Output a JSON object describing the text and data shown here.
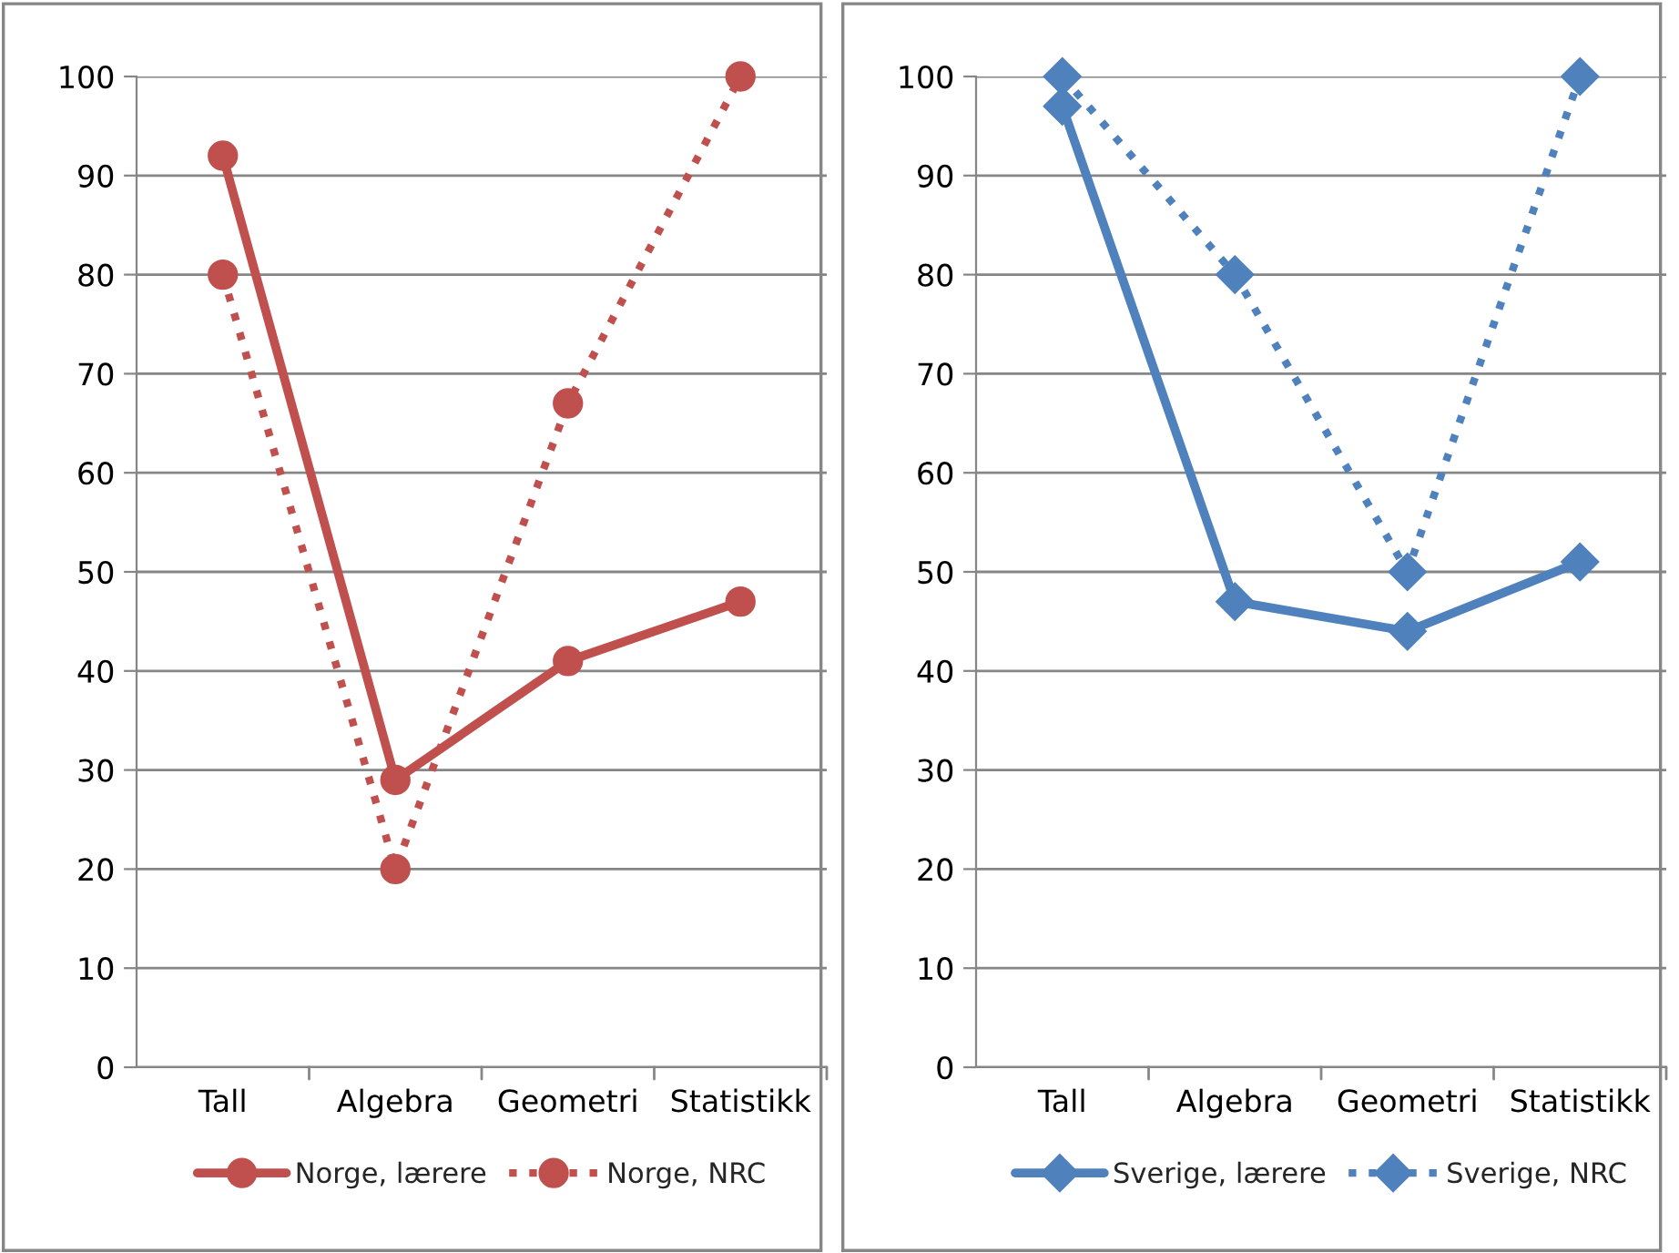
{
  "chart_data": [
    {
      "type": "line",
      "categories": [
        "Tall",
        "Algebra",
        "Geometri",
        "Statistikk"
      ],
      "ylim": [
        0,
        100
      ],
      "yticks": [
        0,
        10,
        20,
        30,
        40,
        50,
        60,
        70,
        80,
        90,
        100
      ],
      "grid": "y",
      "legend": "bottom",
      "series": [
        {
          "name": "Norge, lærere",
          "color": "#c0504d",
          "marker": "circle",
          "line_style": "solid",
          "values": [
            92,
            29,
            41,
            47
          ]
        },
        {
          "name": "Norge, NRC",
          "color": "#c0504d",
          "marker": "circle",
          "line_style": "dotted",
          "values": [
            80,
            20,
            67,
            100
          ]
        }
      ]
    },
    {
      "type": "line",
      "categories": [
        "Tall",
        "Algebra",
        "Geometri",
        "Statistikk"
      ],
      "ylim": [
        0,
        100
      ],
      "yticks": [
        0,
        10,
        20,
        30,
        40,
        50,
        60,
        70,
        80,
        90,
        100
      ],
      "grid": "y",
      "legend": "bottom",
      "series": [
        {
          "name": "Sverige, lærere",
          "color": "#4f81bd",
          "marker": "diamond",
          "line_style": "solid",
          "values": [
            97,
            47,
            44,
            51
          ]
        },
        {
          "name": "Sverige, NRC",
          "color": "#4f81bd",
          "marker": "diamond",
          "line_style": "dotted",
          "values": [
            100,
            80,
            50,
            100
          ]
        }
      ]
    }
  ]
}
